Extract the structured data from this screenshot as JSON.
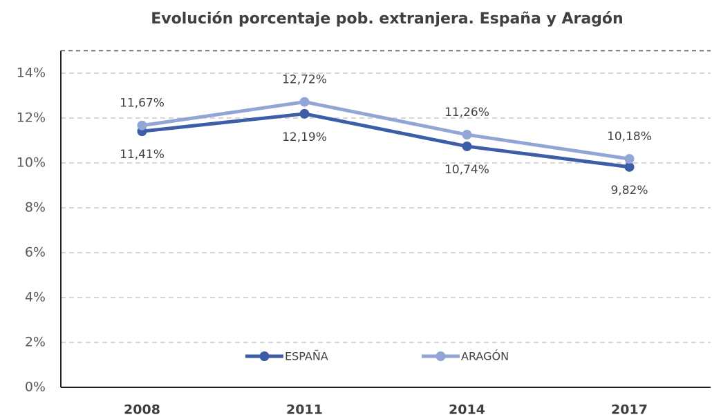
{
  "chart_data": {
    "type": "line",
    "title": "Evolución porcentaje pob. extranjera. España y Aragón",
    "categories": [
      "2008",
      "2011",
      "2014",
      "2017"
    ],
    "series": [
      {
        "name": "ESPAÑA",
        "color": "#3d5ea6",
        "values": [
          11.41,
          12.19,
          10.74,
          9.82
        ],
        "value_labels": [
          "11,41%",
          "12,19%",
          "10,74%",
          "9,82%"
        ]
      },
      {
        "name": "ARAGÓN",
        "color": "#91a6d7",
        "values": [
          11.67,
          12.72,
          11.26,
          10.18
        ],
        "value_labels": [
          "11,67%",
          "12,72%",
          "11,26%",
          "10,18%"
        ]
      }
    ],
    "ylim": [
      0,
      15
    ],
    "yticks": [
      {
        "value": 0,
        "label": "0%"
      },
      {
        "value": 2,
        "label": "2%"
      },
      {
        "value": 4,
        "label": "4%"
      },
      {
        "value": 6,
        "label": "6%"
      },
      {
        "value": 8,
        "label": "8%"
      },
      {
        "value": 10,
        "label": "10%"
      },
      {
        "value": 12,
        "label": "12%"
      },
      {
        "value": 14,
        "label": "14%"
      }
    ],
    "grid": true,
    "legend": "bottom"
  }
}
